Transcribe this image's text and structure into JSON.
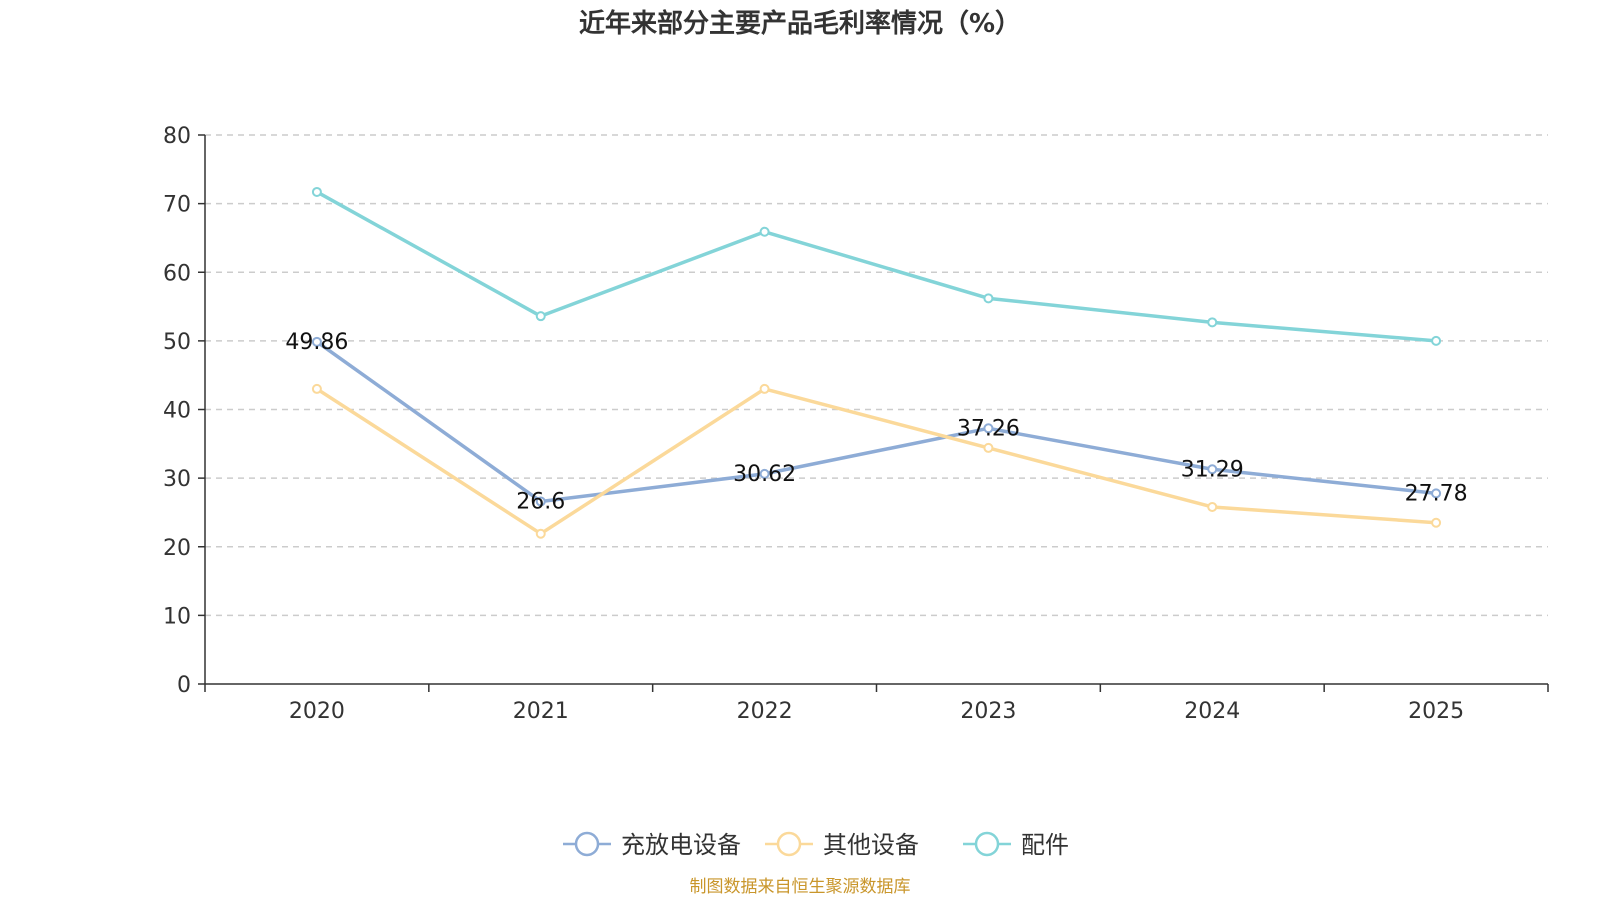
{
  "chart_data": {
    "type": "line",
    "title": "近年来部分主要产品毛利率情况（%）",
    "categories": [
      "2020",
      "2021",
      "2022",
      "2023",
      "2024",
      "2025"
    ],
    "y_ticks": [
      "0",
      "10",
      "20",
      "30",
      "40",
      "50",
      "60",
      "70",
      "80"
    ],
    "ylim": [
      0,
      80
    ],
    "grid": true,
    "legend_position": "bottom-center",
    "series": [
      {
        "name": "充放电设备",
        "color": "#8eacd6",
        "values": [
          49.86,
          26.6,
          30.62,
          37.26,
          31.29,
          27.78
        ],
        "labels": [
          "49.86",
          "26.6",
          "30.62",
          "37.26",
          "31.29",
          "27.78"
        ]
      },
      {
        "name": "其他设备",
        "color": "#fbd99a",
        "values": [
          43.0,
          21.9,
          43.0,
          34.4,
          25.8,
          23.5
        ],
        "labels": []
      },
      {
        "name": "配件",
        "color": "#83d4d8",
        "values": [
          71.7,
          53.6,
          65.9,
          56.2,
          52.7,
          50.0
        ],
        "labels": []
      }
    ],
    "source": "制图数据来自恒生聚源数据库"
  }
}
